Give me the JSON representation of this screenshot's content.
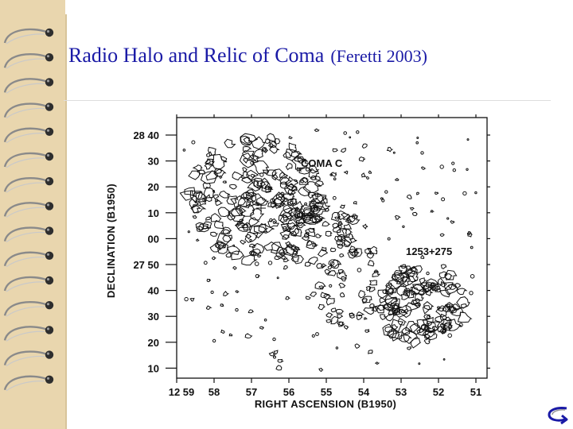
{
  "slide": {
    "title": "Radio Halo and Relic of Coma",
    "citation": "(Feretti 2003)"
  },
  "figure": {
    "dec_axis_label": "DECLINATION (B1950)",
    "ra_axis_label": "RIGHT ASCENSION (B1950)",
    "dec_ticks": [
      "28 40",
      "30",
      "20",
      "10",
      "00",
      "27 50",
      "40",
      "30",
      "20",
      "10"
    ],
    "ra_ticks": [
      "12 59",
      "58",
      "57",
      "56",
      "55",
      "54",
      "53",
      "52",
      "51"
    ],
    "sources": [
      {
        "name": "COMA C"
      },
      {
        "name": "1253+275"
      }
    ]
  },
  "icons": {
    "binding": "spiral-binding-rings-icon",
    "return": "return-arrow-icon"
  },
  "colors": {
    "title": "#1a1aa6",
    "binding": "#e9d6ae",
    "contour": "#111111"
  }
}
